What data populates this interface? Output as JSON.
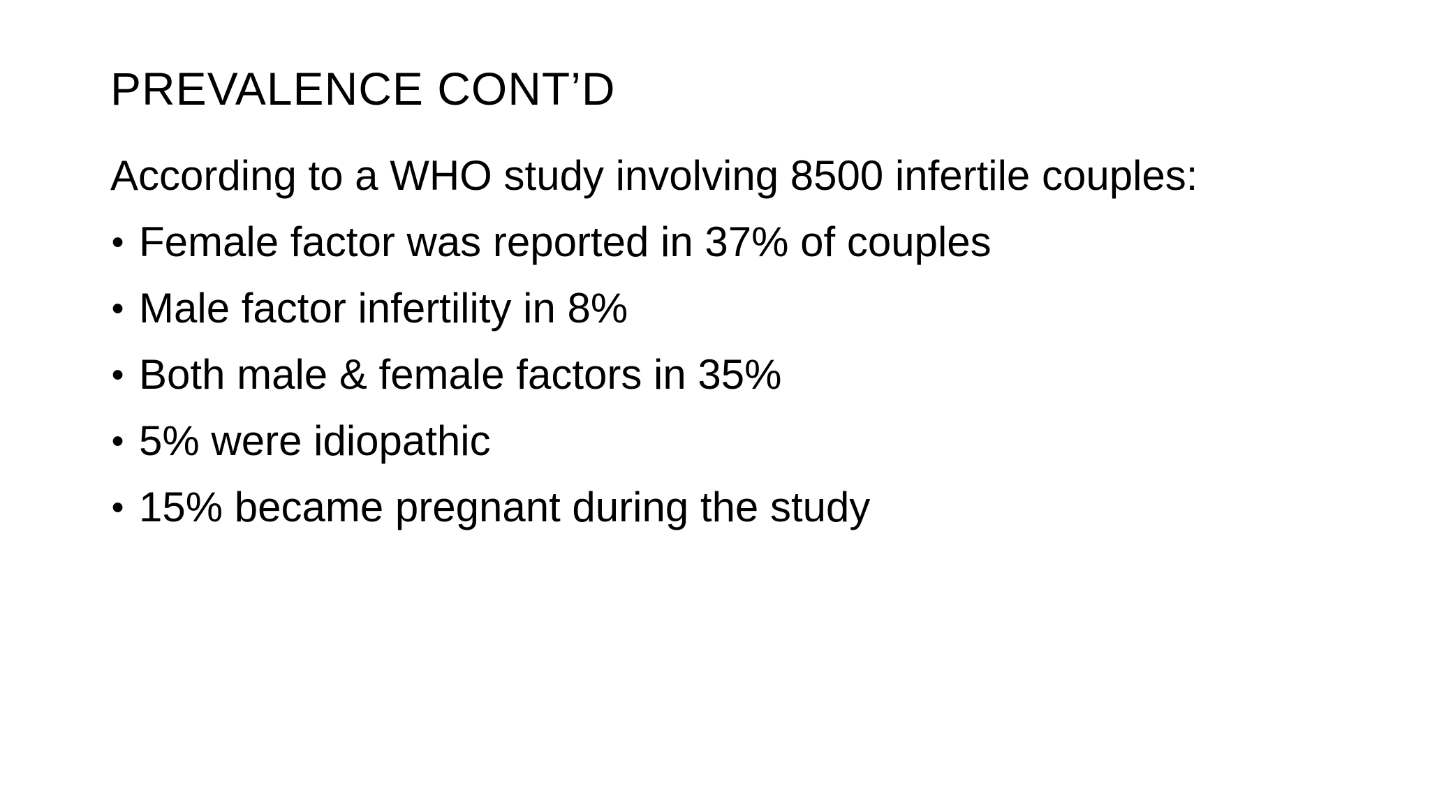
{
  "slide": {
    "title": "PREVALENCE CONT’D",
    "intro": "According to a WHO study involving 8500 infertile couples:",
    "bullet_glyph": "•",
    "bullets": [
      "Female factor was reported in 37% of couples",
      "Male factor infertility in 8%",
      "Both male & female factors in 35%",
      "5% were idiopathic",
      "15% became pregnant during the study"
    ],
    "colors": {
      "background": "#ffffff",
      "text": "#000000"
    }
  }
}
